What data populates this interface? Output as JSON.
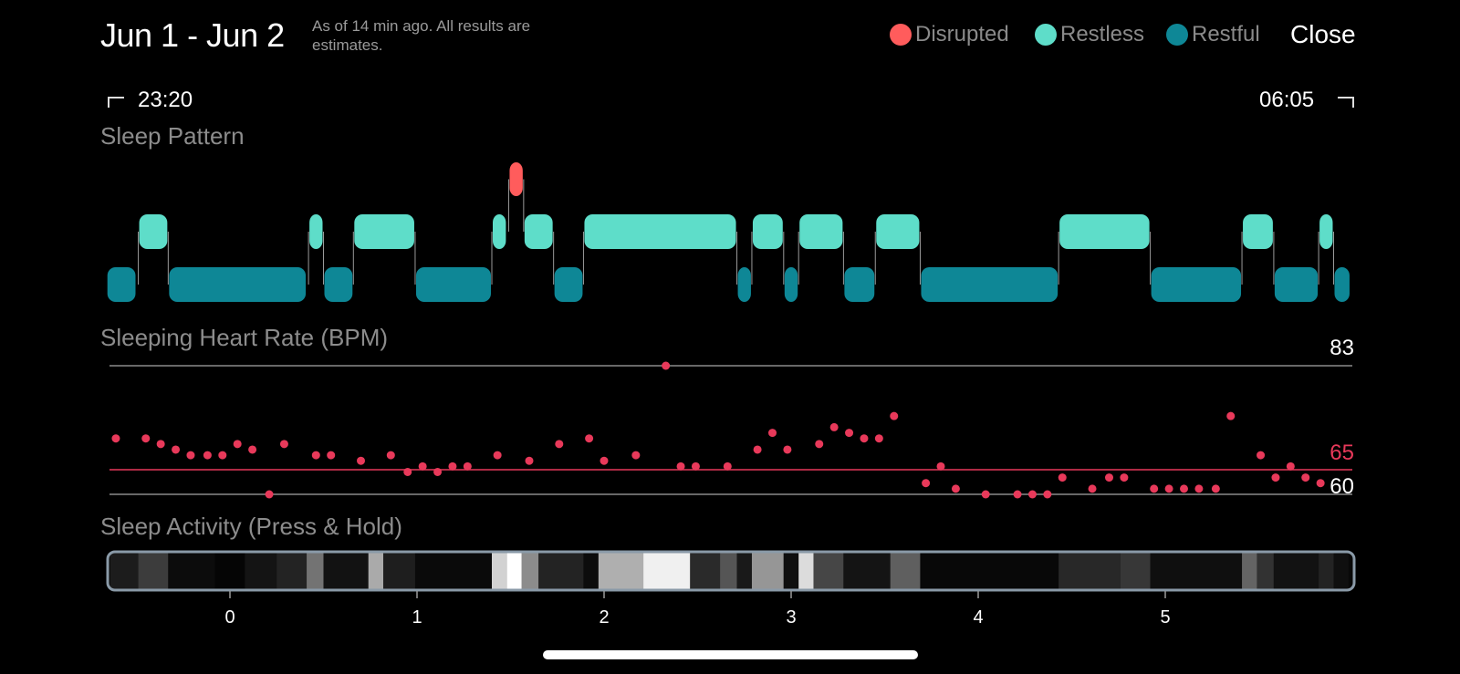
{
  "header": {
    "title": "Jun 1 - Jun 2",
    "subtitle": "As of 14 min ago. All results are estimates.",
    "close_label": "Close"
  },
  "legend": [
    {
      "label": "Disrupted",
      "color": "#FF5C5C"
    },
    {
      "label": "Restless",
      "color": "#5EDDC9"
    },
    {
      "label": "Restful",
      "color": "#0E8796"
    }
  ],
  "time_range": {
    "start": "23:20",
    "end": "06:05"
  },
  "sleep_pattern": {
    "label": "Sleep Pattern",
    "segments": [
      {
        "level": "restful",
        "start": -0.66,
        "end": -0.5
      },
      {
        "level": "restless",
        "start": -0.49,
        "end": -0.33
      },
      {
        "level": "restful",
        "start": -0.33,
        "end": 0.41
      },
      {
        "level": "restless",
        "start": 0.42,
        "end": 0.5
      },
      {
        "level": "restful",
        "start": 0.5,
        "end": 0.66
      },
      {
        "level": "restless",
        "start": 0.66,
        "end": 0.99
      },
      {
        "level": "restful",
        "start": 0.99,
        "end": 1.4
      },
      {
        "level": "restless",
        "start": 1.4,
        "end": 1.48
      },
      {
        "level": "disrupted",
        "start": 1.49,
        "end": 1.57
      },
      {
        "level": "restless",
        "start": 1.57,
        "end": 1.73
      },
      {
        "level": "restful",
        "start": 1.73,
        "end": 1.89
      },
      {
        "level": "restless",
        "start": 1.89,
        "end": 2.71
      },
      {
        "level": "restful",
        "start": 2.71,
        "end": 2.79
      },
      {
        "level": "restless",
        "start": 2.79,
        "end": 2.96
      },
      {
        "level": "restful",
        "start": 2.96,
        "end": 3.04
      },
      {
        "level": "restless",
        "start": 3.04,
        "end": 3.28
      },
      {
        "level": "restful",
        "start": 3.28,
        "end": 3.45
      },
      {
        "level": "restless",
        "start": 3.45,
        "end": 3.69
      },
      {
        "level": "restful",
        "start": 3.69,
        "end": 4.43
      },
      {
        "level": "restless",
        "start": 4.43,
        "end": 4.92
      },
      {
        "level": "restful",
        "start": 4.92,
        "end": 5.41
      },
      {
        "level": "restless",
        "start": 5.41,
        "end": 5.58
      },
      {
        "level": "restful",
        "start": 5.58,
        "end": 5.82
      },
      {
        "level": "restless",
        "start": 5.82,
        "end": 5.9
      },
      {
        "level": "restful",
        "start": 5.9,
        "end": 5.99
      }
    ]
  },
  "heart_rate": {
    "label": "Sleeping Heart Rate (BPM)",
    "max_label": "83",
    "avg_label": "65",
    "min_label": "60",
    "points": [
      [
        -0.61,
        70
      ],
      [
        -0.45,
        70
      ],
      [
        -0.37,
        69
      ],
      [
        -0.29,
        68
      ],
      [
        -0.21,
        67
      ],
      [
        -0.12,
        67
      ],
      [
        -0.04,
        67
      ],
      [
        0.04,
        69
      ],
      [
        0.12,
        68
      ],
      [
        0.21,
        60
      ],
      [
        0.29,
        69
      ],
      [
        0.46,
        67
      ],
      [
        0.54,
        67
      ],
      [
        0.7,
        66
      ],
      [
        0.86,
        67
      ],
      [
        0.95,
        64
      ],
      [
        1.03,
        65
      ],
      [
        1.11,
        64
      ],
      [
        1.19,
        65
      ],
      [
        1.27,
        65
      ],
      [
        1.43,
        67
      ],
      [
        1.6,
        66
      ],
      [
        1.76,
        69
      ],
      [
        1.92,
        70
      ],
      [
        2.0,
        66
      ],
      [
        2.17,
        67
      ],
      [
        2.41,
        65
      ],
      [
        2.49,
        65
      ],
      [
        2.66,
        65
      ],
      [
        2.82,
        68
      ],
      [
        2.9,
        71
      ],
      [
        2.98,
        68
      ],
      [
        3.15,
        69
      ],
      [
        3.23,
        72
      ],
      [
        3.31,
        71
      ],
      [
        3.39,
        70
      ],
      [
        3.47,
        70
      ],
      [
        3.55,
        74
      ],
      [
        3.72,
        62
      ],
      [
        3.8,
        65
      ],
      [
        3.88,
        61
      ],
      [
        4.04,
        60
      ],
      [
        4.21,
        60
      ],
      [
        4.29,
        60
      ],
      [
        4.37,
        60
      ],
      [
        4.45,
        63
      ],
      [
        4.61,
        61
      ],
      [
        4.7,
        63
      ],
      [
        4.78,
        63
      ],
      [
        4.94,
        61
      ],
      [
        5.02,
        61
      ],
      [
        5.1,
        61
      ],
      [
        5.18,
        61
      ],
      [
        5.27,
        61
      ],
      [
        5.35,
        74
      ],
      [
        5.51,
        67
      ],
      [
        5.59,
        63
      ],
      [
        5.67,
        65
      ],
      [
        5.75,
        63
      ],
      [
        5.83,
        62
      ],
      [
        2.33,
        83
      ]
    ]
  },
  "sleep_activity": {
    "label": "Sleep Activity (Press & Hold)",
    "ticks": [
      "0",
      "1",
      "2",
      "3",
      "4",
      "5"
    ],
    "bands": [
      {
        "start": -0.64,
        "end": -0.49,
        "gray": 28
      },
      {
        "start": -0.49,
        "end": -0.33,
        "gray": 60
      },
      {
        "start": -0.33,
        "end": -0.08,
        "gray": 12
      },
      {
        "start": -0.08,
        "end": 0.08,
        "gray": 5
      },
      {
        "start": 0.08,
        "end": 0.25,
        "gray": 20
      },
      {
        "start": 0.25,
        "end": 0.41,
        "gray": 35
      },
      {
        "start": 0.41,
        "end": 0.5,
        "gray": 115
      },
      {
        "start": 0.5,
        "end": 0.74,
        "gray": 18
      },
      {
        "start": 0.74,
        "end": 0.82,
        "gray": 170
      },
      {
        "start": 0.82,
        "end": 0.99,
        "gray": 30
      },
      {
        "start": 0.99,
        "end": 1.4,
        "gray": 10
      },
      {
        "start": 1.4,
        "end": 1.48,
        "gray": 210
      },
      {
        "start": 1.48,
        "end": 1.56,
        "gray": 255
      },
      {
        "start": 1.56,
        "end": 1.65,
        "gray": 140
      },
      {
        "start": 1.65,
        "end": 1.89,
        "gray": 35
      },
      {
        "start": 1.89,
        "end": 1.97,
        "gray": 12
      },
      {
        "start": 1.97,
        "end": 2.21,
        "gray": 175
      },
      {
        "start": 2.21,
        "end": 2.46,
        "gray": 240
      },
      {
        "start": 2.46,
        "end": 2.62,
        "gray": 42
      },
      {
        "start": 2.62,
        "end": 2.71,
        "gray": 85
      },
      {
        "start": 2.71,
        "end": 2.79,
        "gray": 25
      },
      {
        "start": 2.79,
        "end": 2.96,
        "gray": 150
      },
      {
        "start": 2.96,
        "end": 3.04,
        "gray": 15
      },
      {
        "start": 3.04,
        "end": 3.12,
        "gray": 220
      },
      {
        "start": 3.12,
        "end": 3.28,
        "gray": 70
      },
      {
        "start": 3.28,
        "end": 3.53,
        "gray": 20
      },
      {
        "start": 3.53,
        "end": 3.69,
        "gray": 95
      },
      {
        "start": 3.69,
        "end": 4.43,
        "gray": 8
      },
      {
        "start": 4.43,
        "end": 4.76,
        "gray": 40
      },
      {
        "start": 4.76,
        "end": 4.92,
        "gray": 55
      },
      {
        "start": 4.92,
        "end": 5.41,
        "gray": 15
      },
      {
        "start": 5.41,
        "end": 5.49,
        "gray": 100
      },
      {
        "start": 5.49,
        "end": 5.58,
        "gray": 50
      },
      {
        "start": 5.58,
        "end": 5.82,
        "gray": 18
      },
      {
        "start": 5.82,
        "end": 5.9,
        "gray": 35
      },
      {
        "start": 5.9,
        "end": 5.98,
        "gray": 15
      }
    ]
  }
}
